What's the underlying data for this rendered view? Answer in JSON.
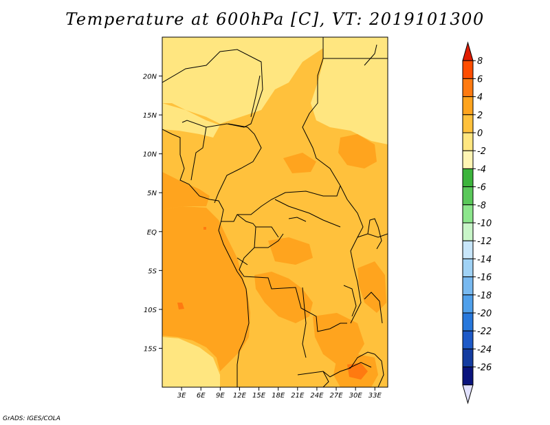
{
  "title": "Temperature at 600hPa [C], VT: 2019101300",
  "credit": "GrADS: IGES/COLA",
  "map": {
    "lon_min": 0,
    "lon_max": 35,
    "lat_min": -20,
    "lat_max": 25,
    "x_ticks": [
      {
        "lon": 3,
        "label": "3E"
      },
      {
        "lon": 6,
        "label": "6E"
      },
      {
        "lon": 9,
        "label": "9E"
      },
      {
        "lon": 12,
        "label": "12E"
      },
      {
        "lon": 15,
        "label": "15E"
      },
      {
        "lon": 18,
        "label": "18E"
      },
      {
        "lon": 21,
        "label": "21E"
      },
      {
        "lon": 24,
        "label": "24E"
      },
      {
        "lon": 27,
        "label": "27E"
      },
      {
        "lon": 30,
        "label": "30E"
      },
      {
        "lon": 33,
        "label": "33E"
      }
    ],
    "y_ticks": [
      {
        "lat": 20,
        "label": "20N"
      },
      {
        "lat": 15,
        "label": "15N"
      },
      {
        "lat": 10,
        "label": "10N"
      },
      {
        "lat": 5,
        "label": "5N"
      },
      {
        "lat": 0,
        "label": "EQ"
      },
      {
        "lat": -5,
        "label": "5S"
      },
      {
        "lat": -10,
        "label": "10S"
      },
      {
        "lat": -15,
        "label": "15S"
      }
    ],
    "colors": {
      "band_m2_0": "#ffe680",
      "band_0_2": "#ffc13c",
      "band_2_4": "#ffa41e",
      "band_4_6": "#ff7a10"
    }
  },
  "colorbar": {
    "labels": [
      "8",
      "6",
      "4",
      "2",
      "0",
      "-2",
      "-4",
      "-6",
      "-8",
      "-10",
      "-12",
      "-14",
      "-16",
      "-18",
      "-20",
      "-22",
      "-24",
      "-26"
    ],
    "colors": [
      "#e01c00",
      "#ff4d00",
      "#ff7a10",
      "#ffa41e",
      "#ffc13c",
      "#ffe680",
      "#fff5b4",
      "#3cb43c",
      "#5ac85a",
      "#8ce68c",
      "#c8f5c8",
      "#c8e6fa",
      "#a0d2f5",
      "#78b9f0",
      "#50a0eb",
      "#2878dc",
      "#1e5ac8",
      "#143ca0",
      "#0a147d",
      "#e1e1ff"
    ]
  }
}
